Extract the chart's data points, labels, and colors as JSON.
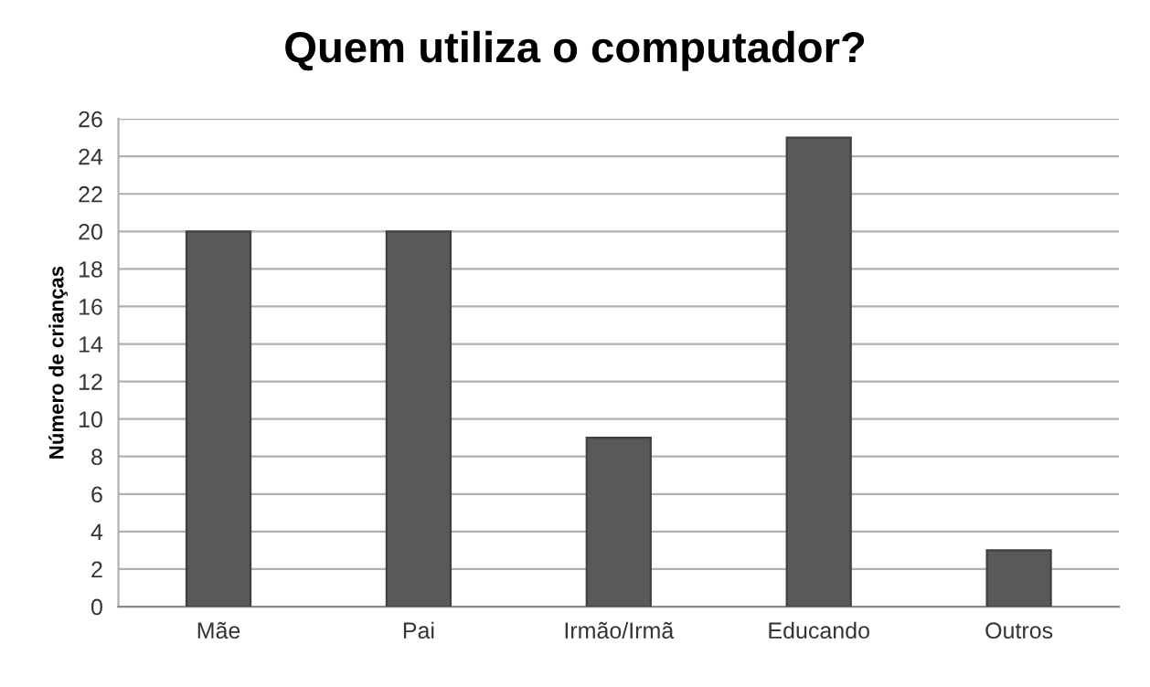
{
  "chart_data": {
    "type": "bar",
    "title": "Quem utiliza o computador?",
    "ylabel": "Número de crianças",
    "categories": [
      "Mãe",
      "Pai",
      "Irmão/Irmã",
      "Educando",
      "Outros"
    ],
    "values": [
      20,
      20,
      9,
      25,
      3
    ],
    "color": "#595959",
    "ylim": [
      0,
      26
    ],
    "yticks": [
      0,
      2,
      4,
      6,
      8,
      10,
      12,
      14,
      16,
      18,
      20,
      22,
      24,
      26
    ],
    "grid": "y",
    "legend": false
  }
}
